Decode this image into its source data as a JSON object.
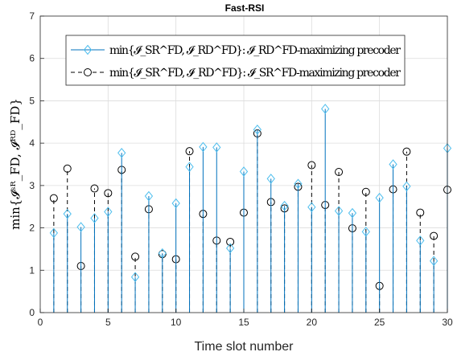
{
  "chart_data": {
    "type": "stem",
    "title": "Fast-RSI",
    "xlabel": "Time slot number",
    "ylabel": "min{𝓘ˢᴿ_FD, 𝓘ᴿᴰ_FD}",
    "xlim": [
      0,
      30
    ],
    "ylim": [
      0,
      7
    ],
    "xticks": [
      0,
      5,
      10,
      15,
      20,
      25,
      30
    ],
    "yticks": [
      0,
      1,
      2,
      3,
      4,
      5,
      6,
      7
    ],
    "grid": true,
    "legend_position": "top",
    "x": [
      1,
      2,
      3,
      4,
      5,
      6,
      7,
      8,
      9,
      10,
      11,
      12,
      13,
      14,
      15,
      16,
      17,
      18,
      19,
      20,
      21,
      22,
      23,
      24,
      25,
      26,
      27,
      28,
      29,
      30
    ],
    "series": [
      {
        "name": "min{𝓘_SR^FD, 𝓘_RD^FD}: 𝓘_RD^FD-maximizing precoder",
        "marker": "diamond",
        "line": "solid",
        "color": "#0072BD",
        "values": [
          1.88,
          2.33,
          2.02,
          2.23,
          2.38,
          3.77,
          0.84,
          2.75,
          1.4,
          2.58,
          3.44,
          3.91,
          3.9,
          1.52,
          3.33,
          4.32,
          3.16,
          2.52,
          3.04,
          2.49,
          4.81,
          2.4,
          2.35,
          1.91,
          2.71,
          3.5,
          2.98,
          1.7,
          1.22,
          3.88
        ]
      },
      {
        "name": "min{𝓘_SR^FD, 𝓘_RD^FD}: 𝓘_SR^FD-maximizing precoder",
        "marker": "circle",
        "line": "dashed",
        "color": "#000000",
        "values": [
          2.7,
          3.4,
          1.1,
          2.93,
          2.82,
          3.37,
          1.32,
          2.44,
          1.38,
          1.26,
          3.81,
          2.33,
          1.7,
          1.67,
          2.36,
          4.23,
          2.61,
          2.46,
          2.97,
          3.48,
          2.54,
          3.32,
          1.99,
          2.85,
          0.63,
          2.91,
          3.8,
          2.36,
          1.81,
          2.9
        ]
      }
    ]
  }
}
